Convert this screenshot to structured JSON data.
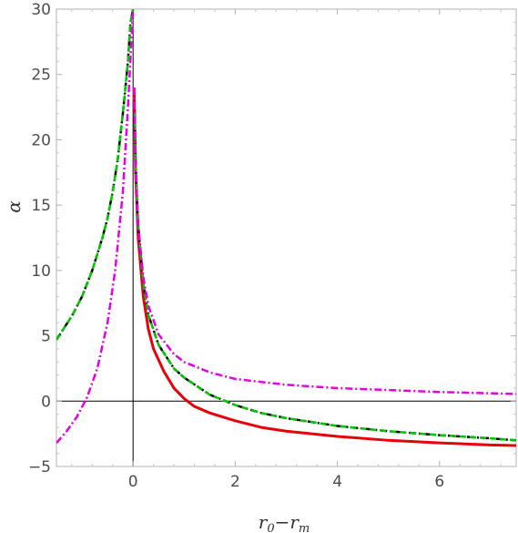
{
  "chart_data": {
    "type": "line",
    "title": "",
    "xlabel": "r0−rm",
    "xlabel_main": "r",
    "xlabel_sub1": "0",
    "xlabel_minus": "−",
    "xlabel_main2": "r",
    "xlabel_sub2": "m",
    "ylabel": "α",
    "xlim": [
      -1.5,
      7.5
    ],
    "ylim": [
      -5,
      30
    ],
    "xticks": [
      0,
      2,
      4,
      6
    ],
    "yticks": [
      -5,
      0,
      5,
      10,
      15,
      20,
      25,
      30
    ],
    "grid": false,
    "legend": "none",
    "series": [
      {
        "color": "#e8000b",
        "style": "solid",
        "x": [
          0.0,
          0.02,
          0.05,
          0.1,
          0.2,
          0.3,
          0.4,
          0.6,
          0.8,
          1.0,
          1.2,
          1.5,
          2.0,
          2.5,
          3.0,
          4.0,
          5.0,
          6.0,
          7.0,
          7.5
        ],
        "y": [
          30,
          24,
          17.5,
          12.5,
          8.0,
          5.5,
          4.0,
          2.3,
          1.0,
          0.2,
          -0.4,
          -0.9,
          -1.5,
          -2.0,
          -2.3,
          -2.7,
          -3.0,
          -3.2,
          -3.35,
          -3.4
        ]
      },
      {
        "color": "#000000",
        "style": "dashdot",
        "x": [
          -1.5,
          -1.2,
          -1.0,
          -0.8,
          -0.6,
          -0.5,
          -0.4,
          -0.3,
          -0.2,
          -0.1,
          -0.05,
          0.0,
          0.03,
          0.06,
          0.1,
          0.2,
          0.3,
          0.5,
          0.8,
          1.0,
          1.5,
          2.0,
          2.5,
          3.0,
          4.0,
          5.0,
          6.0,
          7.0,
          7.5
        ],
        "y": [
          4.7,
          6.5,
          8.0,
          10.0,
          12.5,
          14.0,
          16.0,
          18.5,
          22.0,
          26.0,
          29.0,
          30,
          22.0,
          17.0,
          13.5,
          9.0,
          6.6,
          4.3,
          2.5,
          1.8,
          0.5,
          -0.3,
          -0.9,
          -1.3,
          -1.9,
          -2.3,
          -2.6,
          -2.85,
          -3.0
        ]
      },
      {
        "color": "#00c800",
        "style": "dashed",
        "x": [
          -1.5,
          -1.2,
          -1.0,
          -0.8,
          -0.6,
          -0.5,
          -0.4,
          -0.3,
          -0.2,
          -0.1,
          -0.05,
          0.0,
          0.03,
          0.06,
          0.1,
          0.2,
          0.3,
          0.5,
          0.8,
          1.0,
          1.5,
          2.0,
          2.5,
          3.0,
          4.0,
          5.0,
          6.0,
          7.0,
          7.5
        ],
        "y": [
          4.7,
          6.5,
          8.0,
          10.0,
          12.5,
          14.0,
          16.0,
          18.5,
          22.0,
          26.0,
          29.0,
          30,
          22.0,
          17.0,
          13.5,
          9.0,
          6.6,
          4.3,
          2.5,
          1.8,
          0.5,
          -0.3,
          -0.9,
          -1.3,
          -1.9,
          -2.3,
          -2.6,
          -2.85,
          -3.0
        ]
      },
      {
        "color": "#e600e6",
        "style": "dashdot",
        "x": [
          -1.5,
          -1.3,
          -1.1,
          -0.9,
          -0.7,
          -0.5,
          -0.35,
          -0.2,
          -0.1,
          0.0,
          0.02,
          0.05,
          0.1,
          0.2,
          0.3,
          0.5,
          0.8,
          1.0,
          1.5,
          2.0,
          3.0,
          4.0,
          5.0,
          6.0,
          7.0,
          7.5
        ],
        "y": [
          -3.2,
          -2.3,
          -1.2,
          0.3,
          2.5,
          6.0,
          10.0,
          16.0,
          22.5,
          30,
          24.0,
          18.0,
          13.5,
          9.5,
          7.3,
          5.1,
          3.6,
          3.0,
          2.2,
          1.7,
          1.25,
          1.0,
          0.85,
          0.7,
          0.6,
          0.55
        ]
      }
    ]
  }
}
